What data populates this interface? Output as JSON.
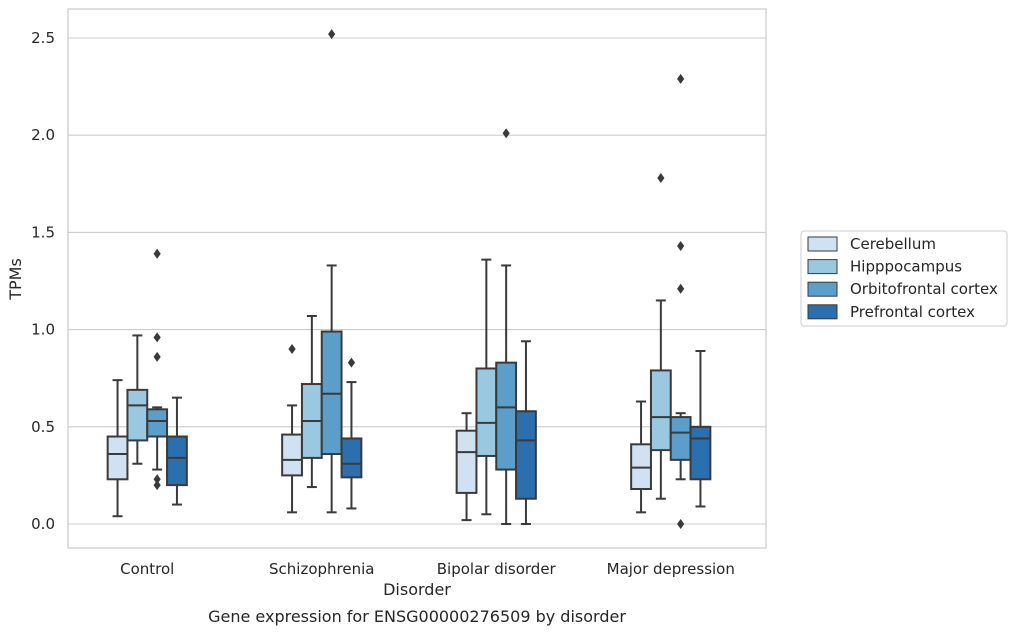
{
  "chart_data": {
    "type": "box",
    "title": "",
    "caption": "Gene expression for ENSG00000276509 by disorder",
    "xlabel": "Disorder",
    "ylabel": "TPMs",
    "ylim": [
      -0.12,
      2.65
    ],
    "yticks": [
      0.0,
      0.5,
      1.0,
      1.5,
      2.0,
      2.5
    ],
    "ytick_labels": [
      "0.0",
      "0.5",
      "1.0",
      "1.5",
      "2.0",
      "2.5"
    ],
    "grid": "horizontal",
    "legend_position": "right",
    "categories": [
      "Control",
      "Schizophrenia",
      "Bipolar disorder",
      "Major depression"
    ],
    "series": [
      {
        "name": "Cerebellum",
        "color": "#d0e1f2",
        "boxes": [
          {
            "whisker_low": 0.04,
            "q1": 0.23,
            "median": 0.36,
            "q3": 0.45,
            "whisker_high": 0.74,
            "outliers": []
          },
          {
            "whisker_low": 0.06,
            "q1": 0.25,
            "median": 0.33,
            "q3": 0.46,
            "whisker_high": 0.61,
            "outliers": [
              0.9
            ]
          },
          {
            "whisker_low": 0.02,
            "q1": 0.16,
            "median": 0.37,
            "q3": 0.48,
            "whisker_high": 0.57,
            "outliers": []
          },
          {
            "whisker_low": 0.06,
            "q1": 0.18,
            "median": 0.29,
            "q3": 0.41,
            "whisker_high": 0.63,
            "outliers": []
          }
        ]
      },
      {
        "name": "Hipppocampus",
        "color": "#9ac8e0",
        "boxes": [
          {
            "whisker_low": 0.31,
            "q1": 0.43,
            "median": 0.61,
            "q3": 0.69,
            "whisker_high": 0.97,
            "outliers": []
          },
          {
            "whisker_low": 0.19,
            "q1": 0.34,
            "median": 0.53,
            "q3": 0.72,
            "whisker_high": 1.07,
            "outliers": []
          },
          {
            "whisker_low": 0.05,
            "q1": 0.35,
            "median": 0.52,
            "q3": 0.8,
            "whisker_high": 1.36,
            "outliers": []
          },
          {
            "whisker_low": 0.13,
            "q1": 0.38,
            "median": 0.55,
            "q3": 0.79,
            "whisker_high": 1.15,
            "outliers": [
              1.78
            ]
          }
        ]
      },
      {
        "name": "Orbitofrontal cortex",
        "color": "#5a9ec9",
        "boxes": [
          {
            "whisker_low": 0.28,
            "q1": 0.45,
            "median": 0.53,
            "q3": 0.59,
            "whisker_high": 0.6,
            "outliers": [
              0.23,
              0.2,
              0.86,
              0.96,
              1.39
            ]
          },
          {
            "whisker_low": 0.06,
            "q1": 0.36,
            "median": 0.67,
            "q3": 0.99,
            "whisker_high": 1.33,
            "outliers": [
              2.52
            ]
          },
          {
            "whisker_low": 0.0,
            "q1": 0.28,
            "median": 0.6,
            "q3": 0.83,
            "whisker_high": 1.33,
            "outliers": [
              2.01
            ]
          },
          {
            "whisker_low": 0.23,
            "q1": 0.33,
            "median": 0.47,
            "q3": 0.55,
            "whisker_high": 0.57,
            "outliers": [
              0.0,
              1.21,
              1.43,
              2.29
            ]
          }
        ]
      },
      {
        "name": "Prefrontal cortex",
        "color": "#2b6fae",
        "boxes": [
          {
            "whisker_low": 0.1,
            "q1": 0.2,
            "median": 0.34,
            "q3": 0.45,
            "whisker_high": 0.65,
            "outliers": []
          },
          {
            "whisker_low": 0.08,
            "q1": 0.24,
            "median": 0.31,
            "q3": 0.44,
            "whisker_high": 0.73,
            "outliers": [
              0.83
            ]
          },
          {
            "whisker_low": 0.0,
            "q1": 0.13,
            "median": 0.43,
            "q3": 0.58,
            "whisker_high": 0.94,
            "outliers": []
          },
          {
            "whisker_low": 0.09,
            "q1": 0.23,
            "median": 0.44,
            "q3": 0.5,
            "whisker_high": 0.89,
            "outliers": []
          }
        ]
      }
    ]
  }
}
